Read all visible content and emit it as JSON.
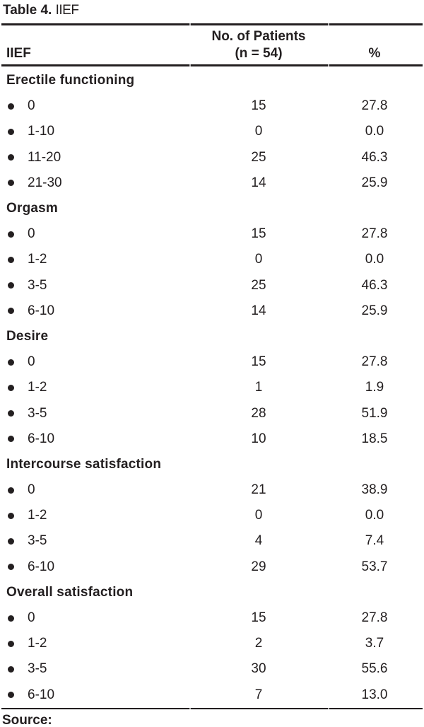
{
  "title": {
    "label": "Table 4.",
    "text": "IIEF"
  },
  "table": {
    "col_headers": {
      "col1": "IIEF",
      "col2_line1": "No. of Patients",
      "col2_line2": "(n = 54)",
      "col3": "%"
    },
    "sections": [
      {
        "name": "Erectile functioning",
        "rows": [
          {
            "label": "0",
            "n": "15",
            "pct": "27.8"
          },
          {
            "label": "1-10",
            "n": "0",
            "pct": "0.0"
          },
          {
            "label": "11-20",
            "n": "25",
            "pct": "46.3"
          },
          {
            "label": "21-30",
            "n": "14",
            "pct": "25.9"
          }
        ]
      },
      {
        "name": "Orgasm",
        "rows": [
          {
            "label": "0",
            "n": "15",
            "pct": "27.8"
          },
          {
            "label": "1-2",
            "n": "0",
            "pct": "0.0"
          },
          {
            "label": "3-5",
            "n": "25",
            "pct": "46.3"
          },
          {
            "label": "6-10",
            "n": "14",
            "pct": "25.9"
          }
        ]
      },
      {
        "name": "Desire",
        "rows": [
          {
            "label": "0",
            "n": "15",
            "pct": "27.8"
          },
          {
            "label": "1-2",
            "n": "1",
            "pct": "1.9"
          },
          {
            "label": "3-5",
            "n": "28",
            "pct": "51.9"
          },
          {
            "label": "6-10",
            "n": "10",
            "pct": "18.5"
          }
        ]
      },
      {
        "name": "Intercourse satisfaction",
        "rows": [
          {
            "label": "0",
            "n": "21",
            "pct": "38.9"
          },
          {
            "label": "1-2",
            "n": "0",
            "pct": "0.0"
          },
          {
            "label": "3-5",
            "n": "4",
            "pct": "7.4"
          },
          {
            "label": "6-10",
            "n": "29",
            "pct": "53.7"
          }
        ]
      },
      {
        "name": "Overall satisfaction",
        "rows": [
          {
            "label": "0",
            "n": "15",
            "pct": "27.8"
          },
          {
            "label": "1-2",
            "n": "2",
            "pct": "3.7"
          },
          {
            "label": "3-5",
            "n": "30",
            "pct": "55.6"
          },
          {
            "label": "6-10",
            "n": "7",
            "pct": "13.0"
          }
        ]
      }
    ],
    "footer": "Source:"
  },
  "colors": {
    "text": "#231f20",
    "rule": "#231f20",
    "background": "#ffffff"
  }
}
